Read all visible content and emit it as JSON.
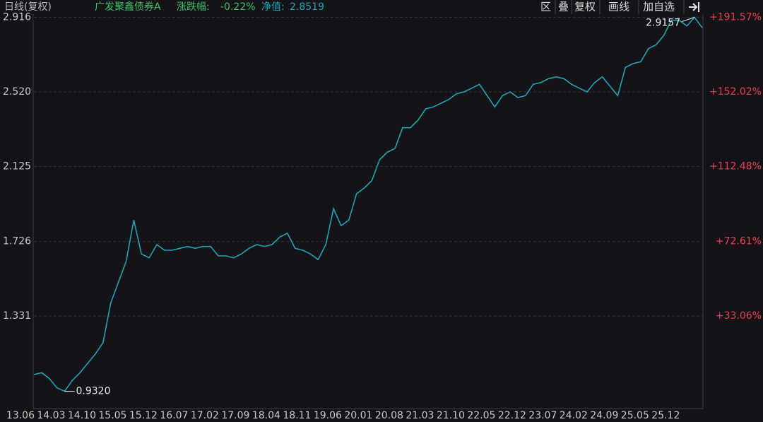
{
  "header": {
    "period": "日线(复权)",
    "fund": "广发聚鑫债券A",
    "change_label": "涨跌幅:",
    "change": "-0.22%",
    "nav_label": "净值:",
    "nav": "2.8519"
  },
  "toolbar": {
    "buttons": [
      "区",
      "叠",
      "复权",
      "画线",
      "加自选"
    ]
  },
  "chart_data": {
    "type": "line",
    "color": "#1fa3b3",
    "grid": true,
    "categories": [
      "13.06",
      null,
      null,
      null,
      "14.03",
      null,
      null,
      null,
      "14.10",
      null,
      null,
      null,
      "15.05",
      null,
      null,
      null,
      "15.12",
      null,
      null,
      null,
      "16.07",
      null,
      null,
      null,
      "17.02",
      null,
      null,
      null,
      "17.09",
      null,
      null,
      null,
      "18.04",
      null,
      null,
      null,
      "18.11",
      null,
      null,
      null,
      "19.06",
      null,
      null,
      null,
      "20.01",
      null,
      null,
      null,
      "20.08",
      null,
      null,
      null,
      "21.03",
      null,
      null,
      null,
      "21.10",
      null,
      null,
      null,
      "22.05",
      null,
      null,
      null,
      "22.12",
      null,
      null,
      null,
      "23.07",
      null,
      null,
      null,
      "24.02",
      null,
      null,
      null,
      "24.09",
      null,
      null,
      null,
      "25.05",
      null,
      null,
      null,
      "25.12",
      null,
      null,
      null
    ],
    "values": [
      1.02,
      1.03,
      1.0,
      0.95,
      0.932,
      0.99,
      1.03,
      1.08,
      1.13,
      1.19,
      1.4,
      1.51,
      1.62,
      1.84,
      1.66,
      1.64,
      1.71,
      1.68,
      1.68,
      1.69,
      1.7,
      1.69,
      1.7,
      1.7,
      1.65,
      1.65,
      1.64,
      1.66,
      1.69,
      1.71,
      1.7,
      1.71,
      1.75,
      1.77,
      1.69,
      1.68,
      1.66,
      1.63,
      1.71,
      1.9,
      1.81,
      1.84,
      1.98,
      2.01,
      2.05,
      2.16,
      2.2,
      2.22,
      2.33,
      2.33,
      2.37,
      2.43,
      2.44,
      2.46,
      2.48,
      2.51,
      2.52,
      2.54,
      2.56,
      2.5,
      2.44,
      2.5,
      2.52,
      2.49,
      2.5,
      2.56,
      2.57,
      2.59,
      2.6,
      2.59,
      2.56,
      2.54,
      2.52,
      2.57,
      2.6,
      2.55,
      2.5,
      2.65,
      2.67,
      2.68,
      2.75,
      2.77,
      2.82,
      2.9,
      2.9,
      2.87,
      2.9157,
      2.86
    ],
    "ylim": [
      0.84,
      2.925
    ],
    "yticks": [
      2.916,
      {
        "value": 2.52,
        "label": "2.520"
      },
      2.125,
      1.726,
      1.331
    ],
    "y2lim": [
      -16,
      192.5
    ],
    "y2ticks": [
      {
        "value": 191.57,
        "label": "+191.57%"
      },
      {
        "value": 152.02,
        "label": "+152.02%"
      },
      {
        "value": 112.48,
        "label": "+112.48%"
      },
      {
        "value": 72.61,
        "label": "+72.61%"
      },
      {
        "value": 33.06,
        "label": "+33.06%"
      }
    ],
    "annotations": [
      {
        "value": 0.932,
        "label": "0.9320"
      },
      {
        "value": 2.9157,
        "label": "2.9157"
      }
    ]
  }
}
